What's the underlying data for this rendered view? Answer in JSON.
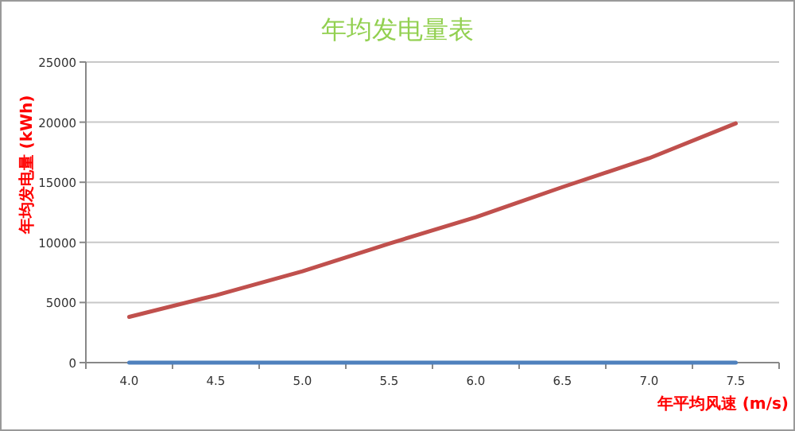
{
  "chart_data": {
    "type": "line",
    "title": "年均发电量表",
    "xlabel": "年平均风速 (m/s)",
    "ylabel": "年均发电量 (kWh)",
    "categories": [
      "4.0",
      "4.5",
      "5.0",
      "5.5",
      "6.0",
      "6.5",
      "7.0",
      "7.5"
    ],
    "series": [
      {
        "color": "#4f81bd",
        "values": [
          0,
          0,
          0,
          0,
          0,
          0,
          0,
          0
        ]
      },
      {
        "color": "#c0504d",
        "values": [
          3800,
          5600,
          7600,
          9900,
          12100,
          14600,
          17000,
          19900
        ]
      }
    ],
    "ylim": [
      0,
      25000
    ],
    "yticks": [
      0,
      5000,
      10000,
      15000,
      20000,
      25000
    ],
    "grid": "y",
    "marker": "none",
    "line_style": "solid"
  }
}
